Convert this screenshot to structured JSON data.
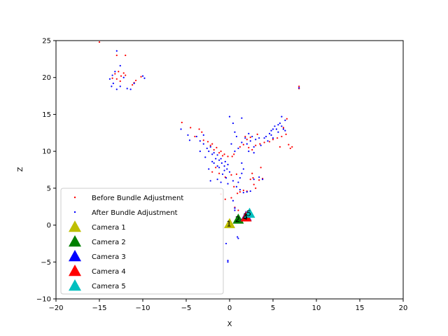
{
  "chart_data": {
    "type": "scatter",
    "title": "",
    "xlabel": "X",
    "ylabel": "Z",
    "xlim": [
      -20,
      20
    ],
    "ylim": [
      -10,
      25
    ],
    "xticks": [
      "−20",
      "−15",
      "−10",
      "−5",
      "0",
      "5",
      "10",
      "15",
      "20"
    ],
    "yticks": [
      "−10",
      "−5",
      "0",
      "5",
      "10",
      "15",
      "20",
      "25"
    ],
    "xtick_values": [
      -20,
      -15,
      -10,
      -5,
      0,
      5,
      10,
      15,
      20
    ],
    "ytick_values": [
      -10,
      -5,
      0,
      5,
      10,
      15,
      20,
      25
    ],
    "grid": false,
    "legend_position": "lower-left",
    "series": [
      {
        "name": "Before Bundle Adjustment",
        "color": "#ff0000",
        "marker": "dot",
        "points": [
          [
            -15,
            24.8
          ],
          [
            -13,
            23.0
          ],
          [
            -12,
            23.0
          ],
          [
            -13.2,
            20.5
          ],
          [
            -12.8,
            20.8
          ],
          [
            -12.5,
            20.2
          ],
          [
            -12.2,
            20.6
          ],
          [
            -13.0,
            19.8
          ],
          [
            -12.6,
            19.5
          ],
          [
            -11.0,
            19.3
          ],
          [
            -11.2,
            19.0
          ],
          [
            -10.8,
            19.6
          ],
          [
            -10.2,
            20.1
          ],
          [
            -13.5,
            19.9
          ],
          [
            -12.0,
            20.3
          ],
          [
            -5.5,
            13.9
          ],
          [
            -4.5,
            13.2
          ],
          [
            -3.5,
            13.0
          ],
          [
            -3.2,
            12.6
          ],
          [
            -4.0,
            12.0
          ],
          [
            -3.0,
            11.5
          ],
          [
            -2.5,
            11.3
          ],
          [
            -2.0,
            11.0
          ],
          [
            -1.5,
            10.5
          ],
          [
            -1.0,
            10.0
          ],
          [
            -0.6,
            9.6
          ],
          [
            -0.2,
            9.3
          ],
          [
            0.3,
            9.3
          ],
          [
            0.5,
            9.6
          ],
          [
            -2.2,
            10.8
          ],
          [
            -1.8,
            10.2
          ],
          [
            -1.2,
            9.8
          ],
          [
            -0.8,
            9.4
          ],
          [
            -1.6,
            7.8
          ],
          [
            -1.2,
            7.0
          ],
          [
            -2.0,
            7.2
          ],
          [
            -0.5,
            6.5
          ],
          [
            0.2,
            6.8
          ],
          [
            0.8,
            6.9
          ],
          [
            1.2,
            10.6
          ],
          [
            1.6,
            10.9
          ],
          [
            2.2,
            10.5
          ],
          [
            2.6,
            10.2
          ],
          [
            3.0,
            10.8
          ],
          [
            3.5,
            11.0
          ],
          [
            4.0,
            11.2
          ],
          [
            4.6,
            11.3
          ],
          [
            5.0,
            11.6
          ],
          [
            5.5,
            11.8
          ],
          [
            6.0,
            12.0
          ],
          [
            6.5,
            12.3
          ],
          [
            6.2,
            13.2
          ],
          [
            6.6,
            14.4
          ],
          [
            5.8,
            10.6
          ],
          [
            6.8,
            10.9
          ],
          [
            7.2,
            10.6
          ],
          [
            7.0,
            10.4
          ],
          [
            2.0,
            11.6
          ],
          [
            2.4,
            11.9
          ],
          [
            3.2,
            12.3
          ],
          [
            1.8,
            12.0
          ],
          [
            2.6,
            7.0
          ],
          [
            2.4,
            6.2
          ],
          [
            2.7,
            6.4
          ],
          [
            3.6,
            7.8
          ],
          [
            3.4,
            6.1
          ],
          [
            3.0,
            5.0
          ],
          [
            2.0,
            4.6
          ],
          [
            1.6,
            4.7
          ],
          [
            1.2,
            4.5
          ],
          [
            0.5,
            5.2
          ],
          [
            -1.0,
            4.2
          ],
          [
            0.9,
            4.3
          ],
          [
            2.8,
            5.5
          ],
          [
            3.8,
            6.3
          ],
          [
            8.0,
            18.8
          ],
          [
            8.0,
            18.5
          ],
          [
            0.2,
            3.7
          ],
          [
            -0.5,
            3.5
          ],
          [
            1.0,
            2.0
          ],
          [
            0.6,
            2.4
          ]
        ]
      },
      {
        "name": "After Bundle Adjustment",
        "color": "#0000ff",
        "marker": "dot",
        "points": [
          [
            -13,
            23.6
          ],
          [
            -12.6,
            21.6
          ],
          [
            -13.5,
            20.3
          ],
          [
            -13.8,
            19.8
          ],
          [
            -13.4,
            19.2
          ],
          [
            -13.6,
            18.8
          ],
          [
            -13.0,
            18.4
          ],
          [
            -12.6,
            18.8
          ],
          [
            -12.2,
            20.0
          ],
          [
            -11.8,
            18.5
          ],
          [
            -11.4,
            18.4
          ],
          [
            -11.0,
            19.2
          ],
          [
            -10.0,
            20.2
          ],
          [
            -9.8,
            19.9
          ],
          [
            -13.2,
            20.8
          ],
          [
            -5.6,
            13.0
          ],
          [
            -4.8,
            12.2
          ],
          [
            -4.6,
            11.5
          ],
          [
            -3.8,
            12.0
          ],
          [
            -3.4,
            11.4
          ],
          [
            -3.0,
            11.0
          ],
          [
            -2.6,
            10.4
          ],
          [
            -2.2,
            10.6
          ],
          [
            -1.8,
            9.8
          ],
          [
            -1.4,
            9.5
          ],
          [
            -1.2,
            8.8
          ],
          [
            -0.9,
            8.4
          ],
          [
            -0.6,
            8.0
          ],
          [
            -0.3,
            7.6
          ],
          [
            0.0,
            7.2
          ],
          [
            -1.6,
            9.0
          ],
          [
            -2.0,
            9.6
          ],
          [
            -2.4,
            10.0
          ],
          [
            -1.0,
            9.0
          ],
          [
            -0.5,
            8.6
          ],
          [
            -0.2,
            8.2
          ],
          [
            -3.0,
            12.2
          ],
          [
            -3.4,
            10.0
          ],
          [
            -2.8,
            9.2
          ],
          [
            -1.8,
            8.4
          ],
          [
            -1.2,
            7.8
          ],
          [
            -0.6,
            7.4
          ],
          [
            -1.4,
            8.0
          ],
          [
            -0.8,
            6.9
          ],
          [
            -2.4,
            7.6
          ],
          [
            -2.0,
            8.6
          ],
          [
            0.0,
            14.7
          ],
          [
            0.4,
            13.8
          ],
          [
            1.4,
            14.5
          ],
          [
            0.8,
            12.0
          ],
          [
            0.6,
            12.6
          ],
          [
            0.2,
            11.0
          ],
          [
            0.6,
            10.0
          ],
          [
            1.0,
            10.4
          ],
          [
            1.4,
            11.2
          ],
          [
            1.8,
            11.8
          ],
          [
            2.2,
            12.4
          ],
          [
            2.6,
            12.0
          ],
          [
            2.0,
            11.0
          ],
          [
            2.4,
            11.4
          ],
          [
            2.8,
            10.6
          ],
          [
            3.0,
            11.6
          ],
          [
            3.4,
            11.8
          ],
          [
            3.6,
            10.8
          ],
          [
            2.2,
            10.0
          ],
          [
            2.8,
            9.8
          ],
          [
            4.2,
            12.0
          ],
          [
            4.6,
            12.4
          ],
          [
            4.8,
            12.8
          ],
          [
            5.0,
            13.0
          ],
          [
            5.2,
            13.4
          ],
          [
            5.4,
            13.0
          ],
          [
            5.6,
            13.6
          ],
          [
            5.8,
            13.8
          ],
          [
            6.0,
            13.4
          ],
          [
            6.2,
            13.0
          ],
          [
            6.4,
            14.2
          ],
          [
            6.0,
            14.7
          ],
          [
            4.4,
            11.4
          ],
          [
            4.0,
            11.8
          ],
          [
            5.0,
            11.8
          ],
          [
            4.8,
            12.2
          ],
          [
            5.6,
            12.6
          ],
          [
            6.4,
            12.8
          ],
          [
            1.4,
            8.4
          ],
          [
            1.6,
            7.6
          ],
          [
            1.4,
            7.0
          ],
          [
            1.2,
            6.4
          ],
          [
            1.0,
            5.8
          ],
          [
            0.8,
            5.2
          ],
          [
            1.2,
            4.8
          ],
          [
            1.6,
            4.4
          ],
          [
            2.0,
            4.5
          ],
          [
            2.4,
            4.6
          ],
          [
            3.4,
            6.5
          ],
          [
            3.8,
            6.2
          ],
          [
            2.8,
            6.2
          ],
          [
            0.4,
            6.0
          ],
          [
            -0.2,
            5.6
          ],
          [
            -1.0,
            5.8
          ],
          [
            -1.4,
            6.2
          ],
          [
            -2.2,
            6.0
          ],
          [
            -0.4,
            6.4
          ],
          [
            8.0,
            18.6
          ],
          [
            -0.4,
            -2.5
          ],
          [
            -0.2,
            -4.8
          ],
          [
            -0.2,
            -5.0
          ],
          [
            0.9,
            -1.6
          ],
          [
            1.0,
            -1.8
          ],
          [
            0.6,
            2.0
          ],
          [
            0.6,
            2.3
          ],
          [
            0.4,
            3.3
          ]
        ]
      }
    ],
    "cameras": [
      {
        "name": "Camera 1",
        "label": "1",
        "color": "#bfbf00",
        "x": 0.0,
        "y": 0.2
      },
      {
        "name": "Camera 2",
        "label": "2",
        "color": "#008000",
        "x": 1.0,
        "y": 0.8
      },
      {
        "name": "Camera 3",
        "label": "3",
        "color": "#0000ff",
        "x": 1.9,
        "y": 1.2
      },
      {
        "name": "Camera 4",
        "label": "4",
        "color": "#ff0000",
        "x": 1.9,
        "y": 1.1
      },
      {
        "name": "Camera 5",
        "label": "5",
        "color": "#00bfbf",
        "x": 2.3,
        "y": 1.6
      }
    ]
  }
}
